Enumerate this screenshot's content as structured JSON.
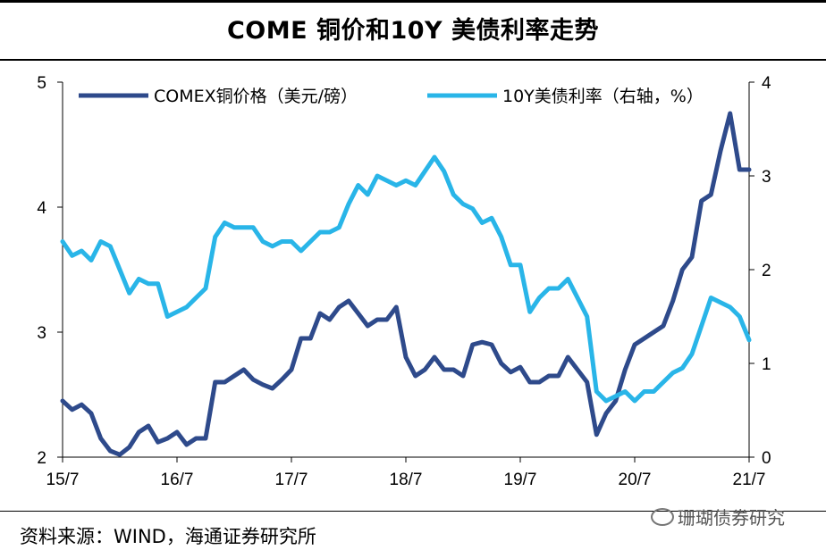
{
  "title": "COME 铜价和10Y 美债利率走势",
  "source": "资料来源：WIND，海通证券研究所",
  "watermark": "珊瑚债券研究",
  "chart_data": {
    "type": "line",
    "x_ticks": [
      "15/7",
      "16/7",
      "17/7",
      "18/7",
      "19/7",
      "20/7",
      "21/7"
    ],
    "y_left_ticks": [
      "2",
      "3",
      "4",
      "5"
    ],
    "y_right_ticks": [
      "0",
      "1",
      "2",
      "3",
      "4"
    ],
    "ylim_left": [
      2,
      5
    ],
    "ylim_right": [
      0,
      4
    ],
    "xlim": [
      "2015-07",
      "2021-07"
    ],
    "grid": false,
    "legend_position": "top",
    "series": [
      {
        "name": "COMEX铜价格（美元/磅）",
        "axis": "left",
        "color": "#2E4A8B",
        "x": [
          "2015-07",
          "2015-08",
          "2015-09",
          "2015-10",
          "2015-11",
          "2015-12",
          "2016-01",
          "2016-02",
          "2016-03",
          "2016-04",
          "2016-05",
          "2016-06",
          "2016-07",
          "2016-08",
          "2016-09",
          "2016-10",
          "2016-11",
          "2016-12",
          "2017-01",
          "2017-02",
          "2017-03",
          "2017-04",
          "2017-05",
          "2017-06",
          "2017-07",
          "2017-08",
          "2017-09",
          "2017-10",
          "2017-11",
          "2017-12",
          "2018-01",
          "2018-02",
          "2018-03",
          "2018-04",
          "2018-05",
          "2018-06",
          "2018-07",
          "2018-08",
          "2018-09",
          "2018-10",
          "2018-11",
          "2018-12",
          "2019-01",
          "2019-02",
          "2019-03",
          "2019-04",
          "2019-05",
          "2019-06",
          "2019-07",
          "2019-08",
          "2019-09",
          "2019-10",
          "2019-11",
          "2019-12",
          "2020-01",
          "2020-02",
          "2020-03",
          "2020-04",
          "2020-05",
          "2020-06",
          "2020-07",
          "2020-08",
          "2020-09",
          "2020-10",
          "2020-11",
          "2020-12",
          "2021-01",
          "2021-02",
          "2021-03",
          "2021-04",
          "2021-05",
          "2021-06",
          "2021-07"
        ],
        "values": [
          2.45,
          2.38,
          2.42,
          2.35,
          2.15,
          2.05,
          2.02,
          2.08,
          2.2,
          2.25,
          2.12,
          2.15,
          2.2,
          2.1,
          2.15,
          2.15,
          2.6,
          2.6,
          2.65,
          2.7,
          2.62,
          2.58,
          2.55,
          2.62,
          2.7,
          2.95,
          2.95,
          3.15,
          3.1,
          3.2,
          3.25,
          3.15,
          3.05,
          3.1,
          3.1,
          3.2,
          2.8,
          2.65,
          2.7,
          2.8,
          2.7,
          2.7,
          2.65,
          2.9,
          2.92,
          2.9,
          2.75,
          2.68,
          2.72,
          2.6,
          2.6,
          2.65,
          2.65,
          2.8,
          2.7,
          2.6,
          2.18,
          2.35,
          2.45,
          2.7,
          2.9,
          2.95,
          3.0,
          3.05,
          3.25,
          3.5,
          3.6,
          4.05,
          4.1,
          4.45,
          4.75,
          4.3,
          4.3
        ]
      },
      {
        "name": "10Y美债利率（右轴，%）",
        "axis": "right",
        "color": "#29B5E8",
        "x": [
          "2015-07",
          "2015-08",
          "2015-09",
          "2015-10",
          "2015-11",
          "2015-12",
          "2016-01",
          "2016-02",
          "2016-03",
          "2016-04",
          "2016-05",
          "2016-06",
          "2016-07",
          "2016-08",
          "2016-09",
          "2016-10",
          "2016-11",
          "2016-12",
          "2017-01",
          "2017-02",
          "2017-03",
          "2017-04",
          "2017-05",
          "2017-06",
          "2017-07",
          "2017-08",
          "2017-09",
          "2017-10",
          "2017-11",
          "2017-12",
          "2018-01",
          "2018-02",
          "2018-03",
          "2018-04",
          "2018-05",
          "2018-06",
          "2018-07",
          "2018-08",
          "2018-09",
          "2018-10",
          "2018-11",
          "2018-12",
          "2019-01",
          "2019-02",
          "2019-03",
          "2019-04",
          "2019-05",
          "2019-06",
          "2019-07",
          "2019-08",
          "2019-09",
          "2019-10",
          "2019-11",
          "2019-12",
          "2020-01",
          "2020-02",
          "2020-03",
          "2020-04",
          "2020-05",
          "2020-06",
          "2020-07",
          "2020-08",
          "2020-09",
          "2020-10",
          "2020-11",
          "2020-12",
          "2021-01",
          "2021-02",
          "2021-03",
          "2021-04",
          "2021-05",
          "2021-06",
          "2021-07"
        ],
        "values": [
          2.3,
          2.15,
          2.2,
          2.1,
          2.3,
          2.25,
          2.0,
          1.75,
          1.9,
          1.85,
          1.85,
          1.5,
          1.55,
          1.6,
          1.7,
          1.8,
          2.35,
          2.5,
          2.45,
          2.45,
          2.45,
          2.3,
          2.25,
          2.3,
          2.3,
          2.2,
          2.3,
          2.4,
          2.4,
          2.45,
          2.7,
          2.9,
          2.8,
          3.0,
          2.95,
          2.9,
          2.95,
          2.9,
          3.05,
          3.2,
          3.05,
          2.8,
          2.7,
          2.65,
          2.5,
          2.55,
          2.35,
          2.05,
          2.05,
          1.55,
          1.7,
          1.8,
          1.8,
          1.9,
          1.7,
          1.5,
          0.7,
          0.6,
          0.65,
          0.7,
          0.6,
          0.7,
          0.7,
          0.8,
          0.9,
          0.95,
          1.1,
          1.4,
          1.7,
          1.65,
          1.6,
          1.5,
          1.25
        ]
      }
    ]
  }
}
